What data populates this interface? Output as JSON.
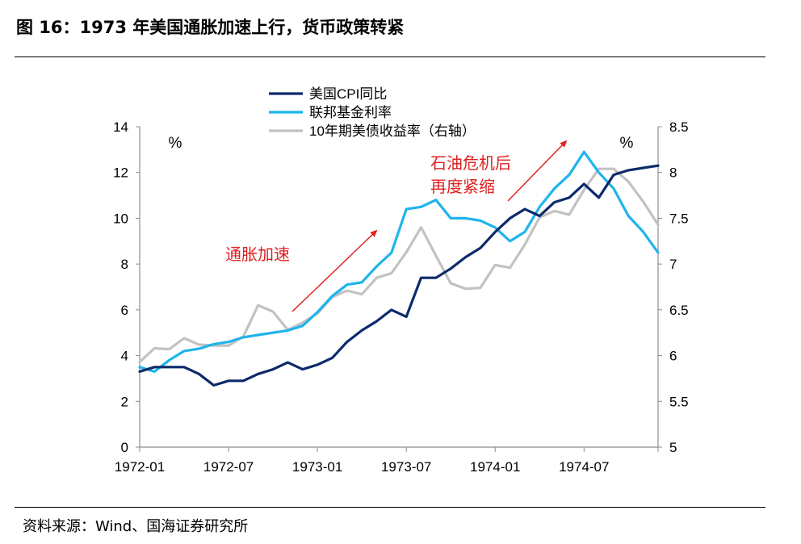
{
  "header": {
    "title": "图 16：1973 年美国通胀加速上行，货币政策转紧"
  },
  "footer": {
    "source": "资料来源：Wind、国海证券研究所"
  },
  "chart_data": {
    "type": "line",
    "x": [
      "1972-01",
      "1972-02",
      "1972-03",
      "1972-04",
      "1972-05",
      "1972-06",
      "1972-07",
      "1972-08",
      "1972-09",
      "1972-10",
      "1972-11",
      "1972-12",
      "1973-01",
      "1973-02",
      "1973-03",
      "1973-04",
      "1973-05",
      "1973-06",
      "1973-07",
      "1973-08",
      "1973-09",
      "1973-10",
      "1973-11",
      "1973-12",
      "1974-01",
      "1974-02",
      "1974-03",
      "1974-04",
      "1974-05",
      "1974-06",
      "1974-07",
      "1974-08",
      "1974-09",
      "1974-10",
      "1974-11",
      "1974-12"
    ],
    "x_tick_labels": [
      "1972-01",
      "1972-07",
      "1973-01",
      "1973-07",
      "1974-01",
      "1974-07"
    ],
    "left_axis": {
      "ylim": [
        0,
        14
      ],
      "ticks": [
        "0",
        "2",
        "4",
        "6",
        "8",
        "10",
        "12",
        "14"
      ],
      "unit": "%"
    },
    "right_axis": {
      "ylim": [
        5,
        8.5
      ],
      "ticks": [
        "5",
        "5.5",
        "6",
        "6.5",
        "7",
        "7.5",
        "8",
        "8.5"
      ],
      "unit": "%"
    },
    "series": [
      {
        "name": "美国CPI同比",
        "axis": "left",
        "color": "#0d2a6b",
        "values": [
          3.3,
          3.5,
          3.5,
          3.5,
          3.2,
          2.7,
          2.9,
          2.9,
          3.2,
          3.4,
          3.7,
          3.4,
          3.6,
          3.9,
          4.6,
          5.1,
          5.5,
          6.0,
          5.7,
          7.4,
          7.4,
          7.8,
          8.3,
          8.7,
          9.4,
          10.0,
          10.4,
          10.1,
          10.7,
          10.9,
          11.5,
          10.9,
          11.9,
          12.1,
          12.2,
          12.3
        ]
      },
      {
        "name": "联邦基金利率",
        "axis": "left",
        "color": "#1fb4ec",
        "values": [
          3.5,
          3.3,
          3.8,
          4.2,
          4.3,
          4.5,
          4.6,
          4.8,
          4.9,
          5.0,
          5.1,
          5.3,
          5.9,
          6.6,
          7.1,
          7.2,
          7.9,
          8.5,
          10.4,
          10.5,
          10.8,
          10.0,
          10.0,
          9.9,
          9.6,
          9.0,
          9.4,
          10.5,
          11.3,
          11.9,
          12.9,
          12.0,
          11.3,
          10.1,
          9.4,
          8.5
        ]
      },
      {
        "name": "10年期美债收益率（右轴）",
        "axis": "right",
        "color": "#c2c2c2",
        "values": [
          5.93,
          6.08,
          6.07,
          6.19,
          6.12,
          6.11,
          6.11,
          6.21,
          6.55,
          6.48,
          6.28,
          6.36,
          6.46,
          6.64,
          6.71,
          6.67,
          6.85,
          6.9,
          7.13,
          7.4,
          7.09,
          6.79,
          6.73,
          6.74,
          6.99,
          6.96,
          7.21,
          7.51,
          7.58,
          7.54,
          7.81,
          8.04,
          8.04,
          7.9,
          7.68,
          7.43
        ]
      }
    ],
    "annotations": [
      {
        "text": "通胀加速"
      },
      {
        "text_lines": [
          "石油危机后",
          "再度紧缩"
        ]
      }
    ]
  }
}
